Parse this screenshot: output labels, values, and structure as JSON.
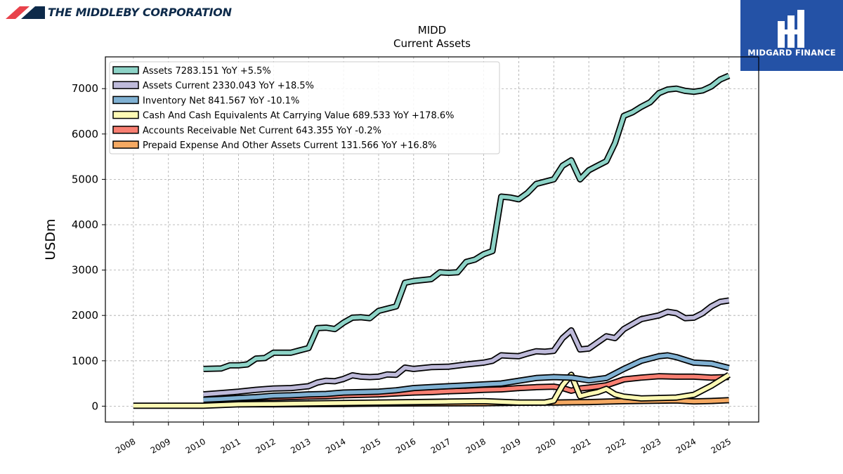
{
  "header": {
    "company": "THE MIDDLEBY CORPORATION",
    "badge_text": "MIDGARD FINANCE",
    "colors": {
      "accent_red": "#e8424b",
      "navy": "#0d2a4a",
      "badge_blue": "#2452a6"
    }
  },
  "chart_data": {
    "type": "line",
    "title": "MIDD",
    "subtitle": "Current  Assets",
    "ylabel": "USDm",
    "xlabel": "",
    "ylim": [
      -350,
      7700
    ],
    "xlim": [
      2007.2,
      2025.85
    ],
    "yticks": [
      0,
      1000,
      2000,
      3000,
      4000,
      5000,
      6000,
      7000
    ],
    "xticks": [
      "2008",
      "2009",
      "2010",
      "2011",
      "2012",
      "2013",
      "2014",
      "2015",
      "2016",
      "2017",
      "2018",
      "2019",
      "2020",
      "2021",
      "2022",
      "2023",
      "2024",
      "2025"
    ],
    "grid": true,
    "legend_position": "top-left",
    "series": [
      {
        "name": "Prepaid Expense And Other Assets Current",
        "legend": "Prepaid Expense And Other Assets Current  131.566 YoY +16.8%",
        "color": "#f5a962",
        "x": [
          2011.0,
          2012.0,
          2013.0,
          2014.0,
          2015.0,
          2016.0,
          2017.0,
          2018.0,
          2019.0,
          2020.0,
          2020.5,
          2021.0,
          2021.5,
          2022.0,
          2023.0,
          2023.5,
          2024.0,
          2024.5,
          2025.0
        ],
        "values": [
          40,
          42,
          45,
          50,
          55,
          60,
          62,
          65,
          75,
          80,
          85,
          90,
          100,
          110,
          120,
          125,
          105,
          115,
          132
        ]
      },
      {
        "name": "Accounts Receivable Net Current",
        "legend": "Accounts Receivable Net Current  643.355 YoY -0.2%",
        "color": "#f87f72",
        "x": [
          2010.0,
          2010.5,
          2011.0,
          2011.5,
          2012.0,
          2012.5,
          2013.0,
          2013.5,
          2014.0,
          2014.5,
          2015.0,
          2015.5,
          2016.0,
          2016.5,
          2017.0,
          2017.5,
          2018.0,
          2018.5,
          2019.0,
          2019.5,
          2020.0,
          2020.25,
          2020.5,
          2020.75,
          2021.0,
          2021.5,
          2022.0,
          2022.5,
          2023.0,
          2023.5,
          2024.0,
          2024.5,
          2025.0
        ],
        "values": [
          130,
          150,
          170,
          180,
          190,
          200,
          210,
          220,
          240,
          250,
          260,
          280,
          300,
          310,
          330,
          340,
          360,
          370,
          400,
          420,
          430,
          400,
          340,
          390,
          410,
          460,
          590,
          630,
          660,
          650,
          650,
          630,
          643
        ]
      },
      {
        "name": "Cash And Cash Equivalents At Carrying Value",
        "legend": "Cash And Cash Equivalents At Carrying Value  689.533 YoY +178.6%",
        "color": "#fdf9b4",
        "x": [
          2008.0,
          2010.0,
          2011.0,
          2012.0,
          2013.0,
          2014.0,
          2015.0,
          2016.0,
          2017.0,
          2018.0,
          2019.0,
          2019.75,
          2020.0,
          2020.25,
          2020.5,
          2020.75,
          2021.0,
          2021.25,
          2021.5,
          2021.75,
          2022.0,
          2022.5,
          2023.0,
          2023.5,
          2024.0,
          2024.5,
          2025.0
        ],
        "values": [
          10,
          10,
          40,
          50,
          60,
          70,
          80,
          90,
          100,
          110,
          80,
          80,
          120,
          460,
          690,
          220,
          270,
          310,
          380,
          260,
          210,
          170,
          180,
          190,
          250,
          450,
          690
        ]
      },
      {
        "name": "Inventory Net",
        "legend": "Inventory Net  841.567 YoY -10.1%",
        "color": "#80b1d3",
        "x": [
          2010.0,
          2010.5,
          2011.0,
          2011.5,
          2012.0,
          2012.5,
          2013.0,
          2013.5,
          2014.0,
          2014.5,
          2015.0,
          2015.5,
          2016.0,
          2016.5,
          2017.0,
          2017.5,
          2018.0,
          2018.5,
          2019.0,
          2019.5,
          2020.0,
          2020.5,
          2021.0,
          2021.5,
          2022.0,
          2022.5,
          2023.0,
          2023.25,
          2023.5,
          2024.0,
          2024.5,
          2025.0
        ],
        "values": [
          140,
          160,
          180,
          200,
          230,
          240,
          260,
          270,
          300,
          310,
          320,
          350,
          400,
          420,
          440,
          460,
          480,
          500,
          560,
          620,
          640,
          630,
          570,
          620,
          820,
          1000,
          1100,
          1120,
          1080,
          960,
          940,
          842
        ]
      },
      {
        "name": "Assets Current",
        "legend": "Assets Current  2330.043 YoY +18.5%",
        "color": "#bebada",
        "x": [
          2010.0,
          2010.5,
          2011.0,
          2011.5,
          2012.0,
          2012.5,
          2013.0,
          2013.25,
          2013.5,
          2013.75,
          2014.0,
          2014.25,
          2014.5,
          2014.75,
          2015.0,
          2015.25,
          2015.5,
          2015.75,
          2016.0,
          2016.5,
          2017.0,
          2017.5,
          2018.0,
          2018.25,
          2018.5,
          2018.75,
          2019.0,
          2019.25,
          2019.5,
          2019.75,
          2020.0,
          2020.25,
          2020.5,
          2020.75,
          2021.0,
          2021.5,
          2021.75,
          2022.0,
          2022.5,
          2023.0,
          2023.25,
          2023.5,
          2023.75,
          2024.0,
          2024.25,
          2024.5,
          2024.75,
          2025.0
        ],
        "values": [
          260,
          290,
          320,
          360,
          390,
          400,
          440,
          520,
          560,
          550,
          600,
          680,
          650,
          640,
          650,
          700,
          690,
          850,
          820,
          860,
          870,
          920,
          960,
          1000,
          1120,
          1110,
          1100,
          1160,
          1210,
          1200,
          1220,
          1500,
          1670,
          1250,
          1270,
          1540,
          1500,
          1700,
          1920,
          2000,
          2080,
          2050,
          1940,
          1950,
          2050,
          2200,
          2300,
          2330
        ]
      },
      {
        "name": "Assets",
        "legend": "Assets  7283.151 YoY +5.5%",
        "color": "#8dd3c7",
        "x": [
          2010.0,
          2010.5,
          2010.75,
          2011.0,
          2011.25,
          2011.5,
          2011.75,
          2012.0,
          2012.5,
          2012.75,
          2013.0,
          2013.25,
          2013.5,
          2013.75,
          2014.0,
          2014.25,
          2014.5,
          2014.75,
          2015.0,
          2015.25,
          2015.5,
          2015.75,
          2016.0,
          2016.5,
          2016.75,
          2017.0,
          2017.25,
          2017.5,
          2017.75,
          2018.0,
          2018.25,
          2018.5,
          2018.75,
          2019.0,
          2019.25,
          2019.5,
          2019.75,
          2020.0,
          2020.25,
          2020.5,
          2020.75,
          2021.0,
          2021.25,
          2021.5,
          2021.75,
          2022.0,
          2022.25,
          2022.5,
          2022.75,
          2023.0,
          2023.25,
          2023.5,
          2023.75,
          2024.0,
          2024.25,
          2024.5,
          2024.75,
          2025.0
        ],
        "values": [
          820,
          830,
          900,
          900,
          920,
          1050,
          1060,
          1180,
          1180,
          1230,
          1280,
          1720,
          1730,
          1700,
          1840,
          1950,
          1960,
          1940,
          2100,
          2150,
          2200,
          2720,
          2760,
          2800,
          2950,
          2940,
          2950,
          3180,
          3230,
          3350,
          3420,
          4620,
          4600,
          4560,
          4700,
          4900,
          4950,
          5000,
          5300,
          5420,
          5000,
          5200,
          5300,
          5400,
          5800,
          6400,
          6480,
          6600,
          6700,
          6900,
          6980,
          7000,
          6950,
          6930,
          6960,
          7050,
          7200,
          7283
        ]
      }
    ]
  }
}
